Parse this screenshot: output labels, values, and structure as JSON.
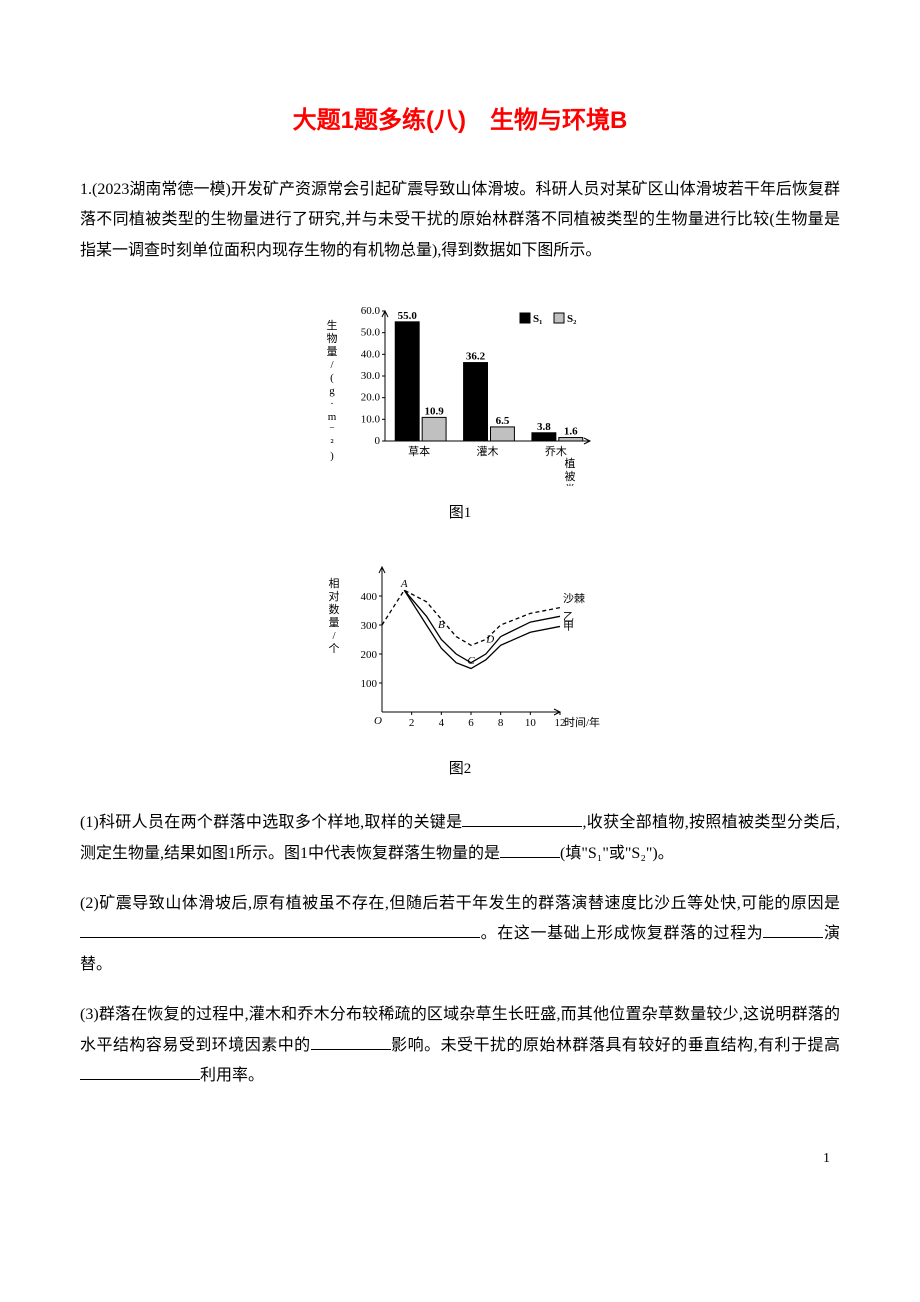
{
  "title": "大题1题多练(八)　生物与环境B",
  "q1_stem": "1.(2023湖南常德一模)开发矿产资源常会引起矿震导致山体滑坡。科研人员对某矿区山体滑坡若干年后恢复群落不同植被类型的生物量进行了研究,并与未受干扰的原始林群落不同植被类型的生物量进行比较(生物量是指某一调查时刻单位面积内现存生物的有机物总量),得到数据如下图所示。",
  "fig1": {
    "type": "bar",
    "caption": "图1",
    "ylabel": "生物量/(g·m⁻²)",
    "xlabel": "植被类型",
    "categories": [
      "草本",
      "灌木",
      "乔木"
    ],
    "series": [
      {
        "name": "S₁",
        "values": [
          55.0,
          36.2,
          3.8
        ],
        "labels": [
          "55.0",
          "36.2",
          "3.8"
        ],
        "color": "#000000"
      },
      {
        "name": "S₂",
        "values": [
          10.9,
          6.5,
          1.6
        ],
        "labels": [
          "10.9",
          "6.5",
          "1.6"
        ],
        "color": "#c0c0c0"
      }
    ],
    "ylim": [
      0,
      60
    ],
    "yticks": [
      0,
      10,
      20,
      30,
      40,
      50,
      60
    ],
    "ytick_labels": [
      "0",
      "10.0",
      "20.0",
      "30.0",
      "40.0",
      "50.0",
      "60.0"
    ],
    "bg": "#ffffff",
    "axis_color": "#000000",
    "font_size": 11,
    "bar_width": 0.35,
    "legend_pos": "top-right"
  },
  "fig2": {
    "type": "line",
    "caption": "图2",
    "ylabel": "相对数量/个",
    "xlabel": "时间/年",
    "xlim": [
      0,
      12
    ],
    "xticks": [
      0,
      2,
      4,
      6,
      8,
      10,
      12
    ],
    "ylim": [
      0,
      500
    ],
    "yticks": [
      100,
      200,
      300,
      400
    ],
    "bg": "#ffffff",
    "axis_color": "#000000",
    "font_size": 11,
    "series": [
      {
        "name": "沙棘",
        "style": "dashed",
        "color": "#000000",
        "points": [
          [
            0,
            300
          ],
          [
            1.5,
            420
          ],
          [
            3,
            380
          ],
          [
            4,
            320
          ],
          [
            5,
            260
          ],
          [
            6,
            230
          ],
          [
            7,
            250
          ],
          [
            8,
            300
          ],
          [
            10,
            340
          ],
          [
            12,
            360
          ]
        ],
        "label_x": 12,
        "label_y": 380
      },
      {
        "name": "乙",
        "style": "solid",
        "color": "#000000",
        "points": [
          [
            1.5,
            420
          ],
          [
            3,
            330
          ],
          [
            4,
            250
          ],
          [
            5,
            200
          ],
          [
            6,
            170
          ],
          [
            7,
            200
          ],
          [
            8,
            260
          ],
          [
            10,
            310
          ],
          [
            12,
            330
          ]
        ],
        "label_x": 12,
        "label_y": 315
      },
      {
        "name": "甲",
        "style": "solid",
        "color": "#000000",
        "points": [
          [
            1.5,
            420
          ],
          [
            3,
            300
          ],
          [
            4,
            220
          ],
          [
            5,
            170
          ],
          [
            6,
            150
          ],
          [
            7,
            180
          ],
          [
            8,
            230
          ],
          [
            10,
            275
          ],
          [
            12,
            295
          ]
        ],
        "label_x": 12,
        "label_y": 285
      }
    ],
    "markers": [
      {
        "label": "A",
        "x": 1.5,
        "y": 420
      },
      {
        "label": "B",
        "x": 4,
        "y": 280
      },
      {
        "label": "C",
        "x": 6,
        "y": 155
      },
      {
        "label": "D",
        "x": 7.3,
        "y": 230
      }
    ]
  },
  "q1_1a": "(1)科研人员在两个群落中选取多个样地,取样的关键是",
  "q1_1b": ",收获全部植物,按照植被类型分类后,测定生物量,结果如图1所示。图1中代表恢复群落生物量的是",
  "q1_1c": "(填\"S₁\"或\"S₂\")。",
  "q1_2a": "(2)矿震导致山体滑坡后,原有植被虽不存在,但随后若干年发生的群落演替速度比沙丘等处快,可能的原因是",
  "q1_2b": "。在这一基础上形成恢复群落的过程为",
  "q1_2c": "演替。",
  "q1_3a": "(3)群落在恢复的过程中,灌木和乔木分布较稀疏的区域杂草生长旺盛,而其他位置杂草数量较少,这说明群落的水平结构容易受到环境因素中的",
  "q1_3b": "影响。未受干扰的原始林群落具有较好的垂直结构,有利于提高",
  "q1_3c": "利用率。",
  "page_num": "1"
}
